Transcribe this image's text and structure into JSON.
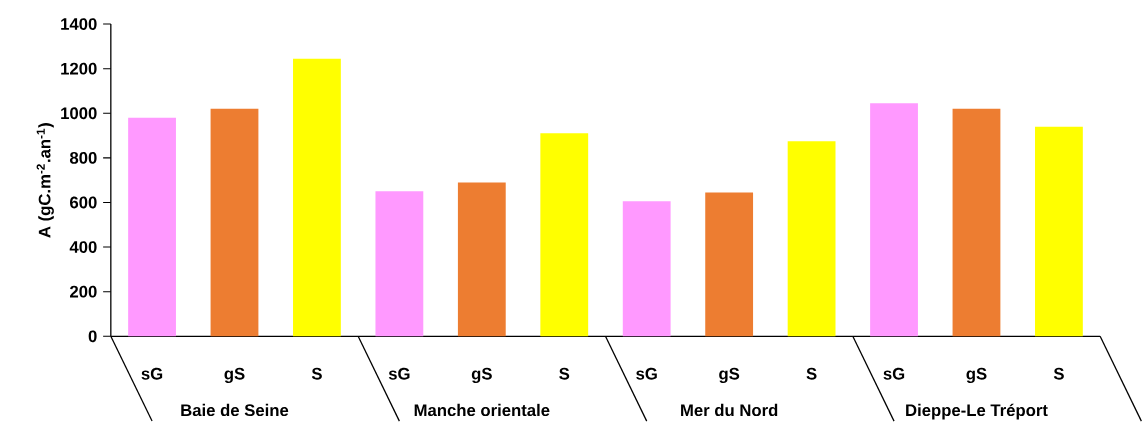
{
  "chart_data": {
    "type": "bar",
    "ylabel": "A (gC.m$^{-2}$.an$^{-1}$)",
    "categories": [
      "sG",
      "gS",
      "S",
      "sG",
      "gS",
      "S",
      "sG",
      "gS",
      "S",
      "sG",
      "gS",
      "S"
    ],
    "values": [
      980,
      1020,
      1245,
      650,
      690,
      910,
      605,
      645,
      875,
      1045,
      1020,
      940
    ],
    "colors": [
      "#ff99ff",
      "#ed7d31",
      "#ffff00",
      "#ff99ff",
      "#ed7d31",
      "#ffff00",
      "#ff99ff",
      "#ed7d31",
      "#ffff00",
      "#ff99ff",
      "#ed7d31",
      "#ffff00"
    ],
    "annotations": [
      "Baie de Seine",
      "Manche orientale",
      "Mer du Nord",
      "Dieppe-Le Tréport"
    ],
    "ylim": [
      0,
      1400
    ],
    "yticks": [
      0,
      200,
      400,
      600,
      800,
      1000,
      1200,
      1400
    ]
  }
}
